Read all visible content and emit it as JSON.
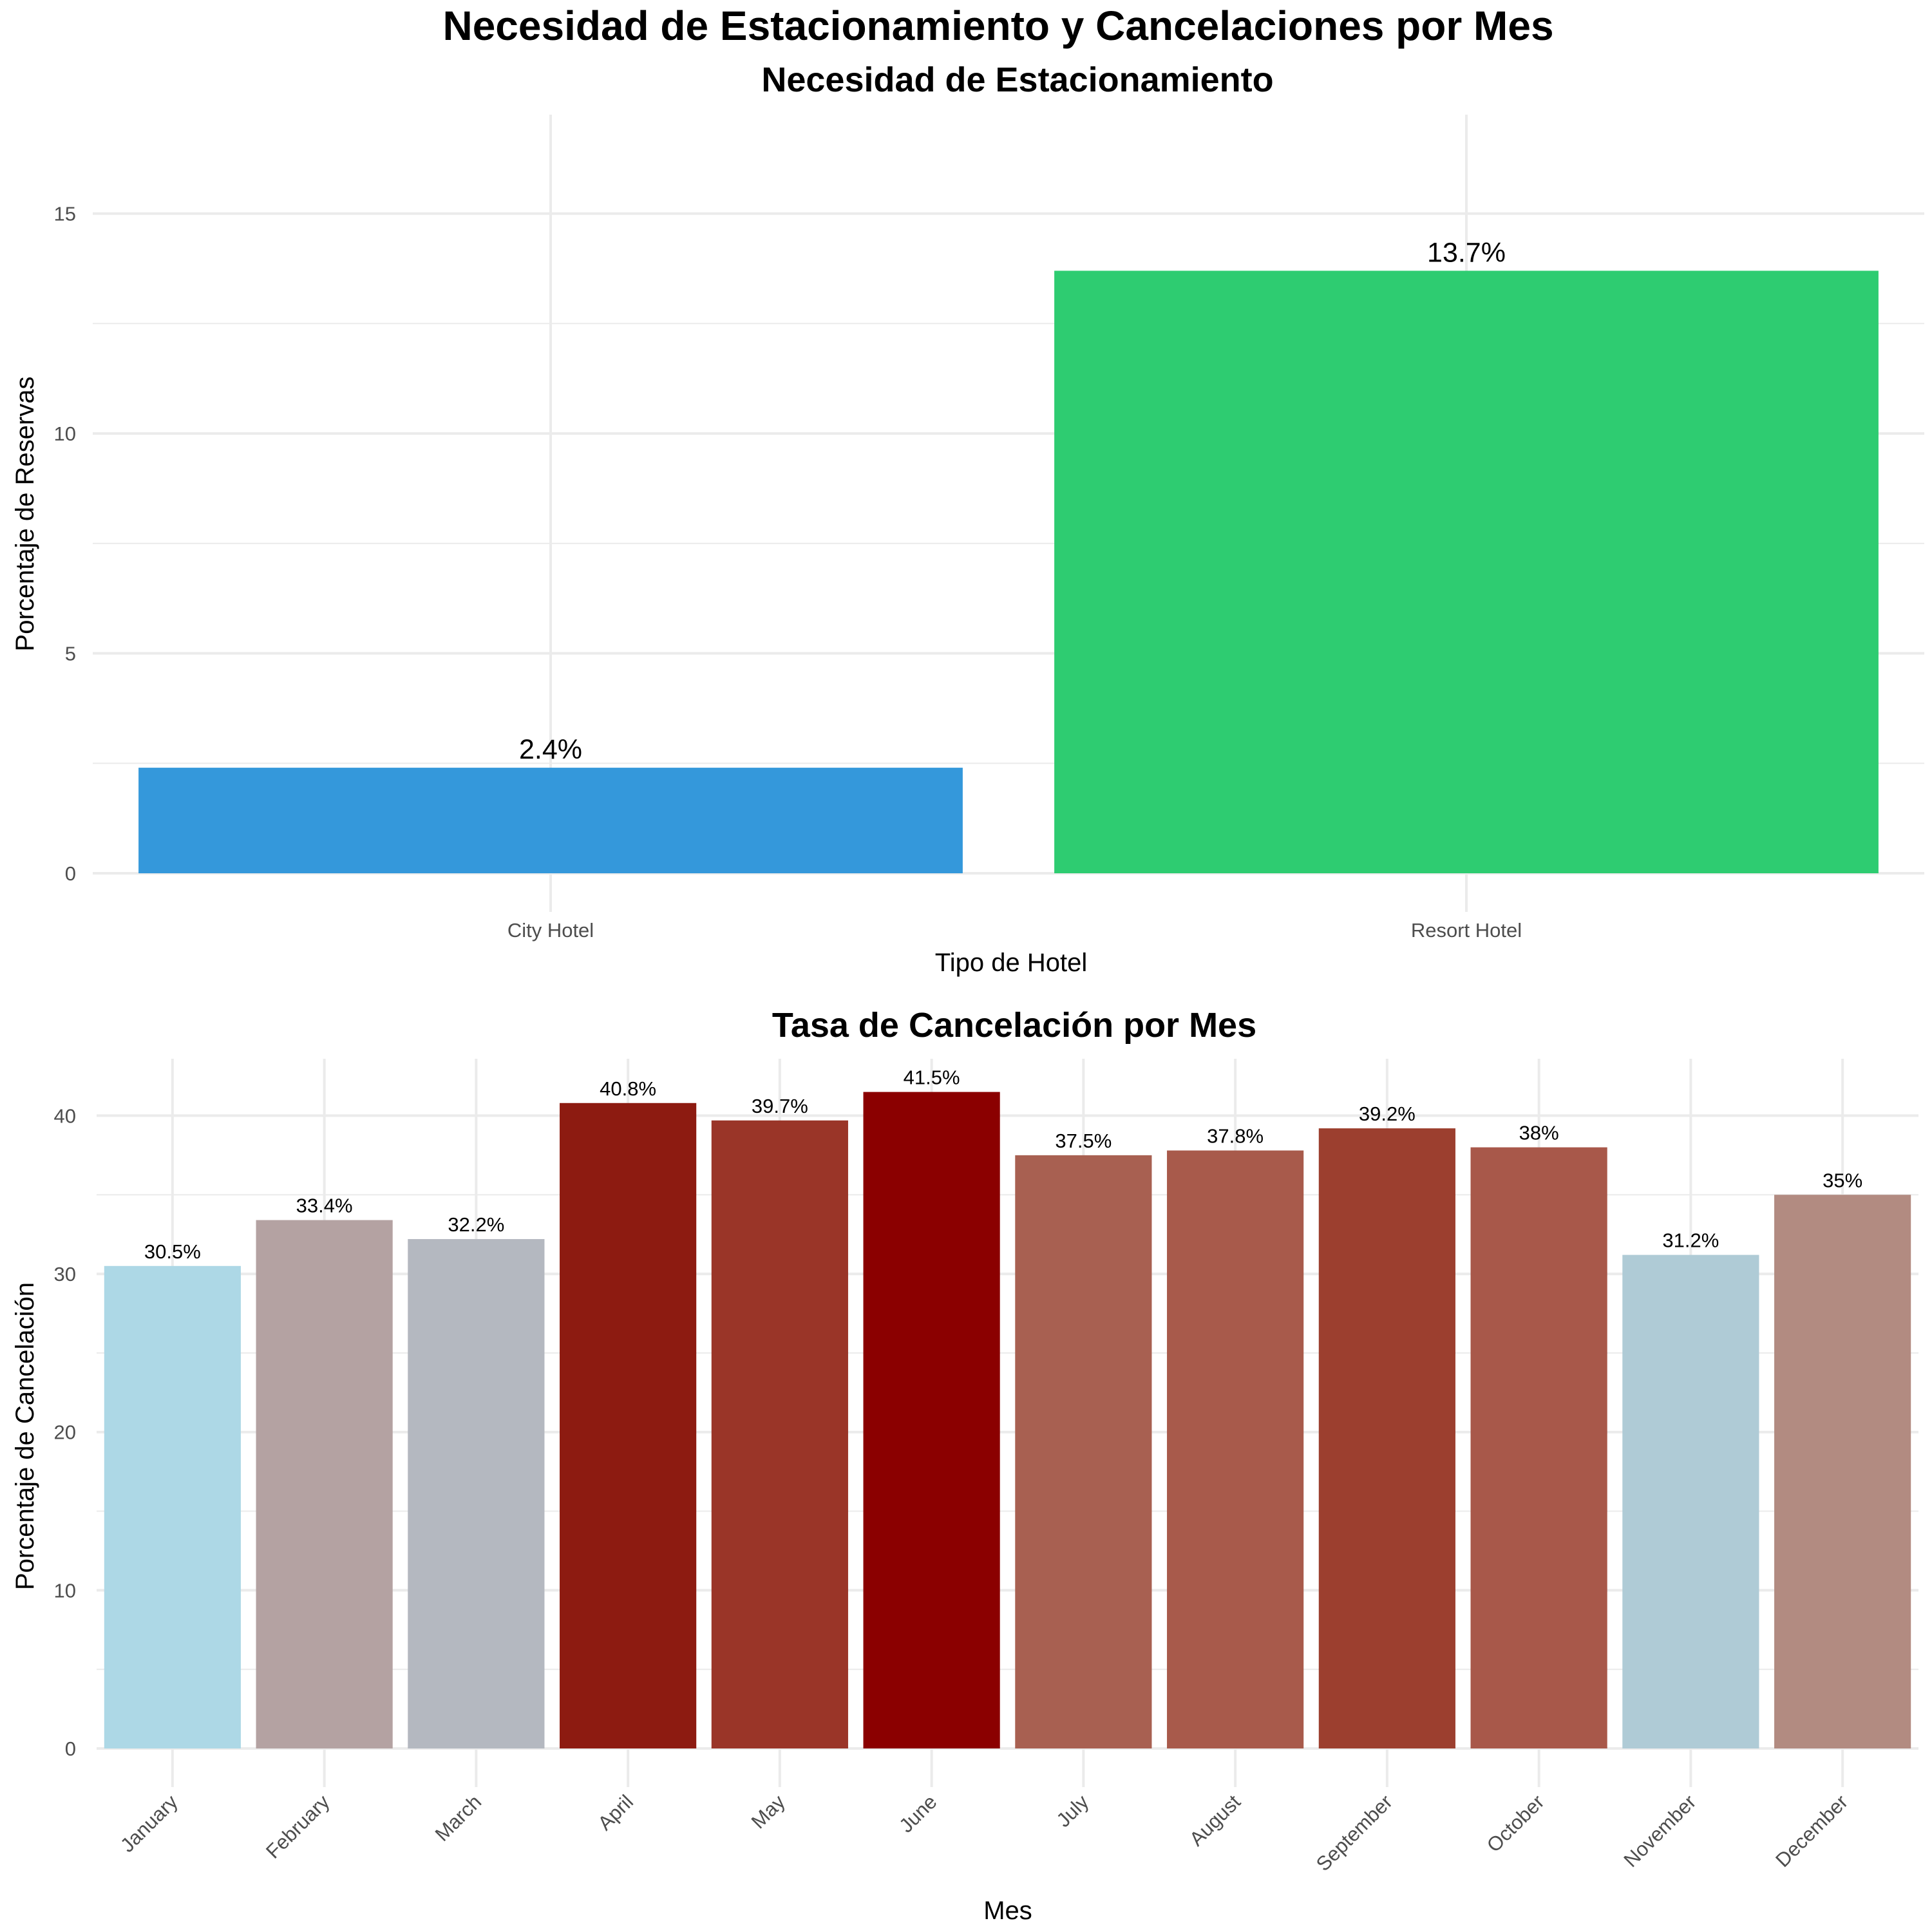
{
  "title": "Necesidad de Estacionamiento y Cancelaciones por Mes",
  "chart_data": [
    {
      "type": "bar",
      "title": "Necesidad de Estacionamiento",
      "xlabel": "Tipo de Hotel",
      "ylabel": "Porcentaje de Reservas",
      "categories": [
        "City Hotel",
        "Resort Hotel"
      ],
      "values": [
        2.4,
        13.7
      ],
      "labels": [
        "2.4%",
        "13.7%"
      ],
      "colors": [
        "#3498db",
        "#2ecc71"
      ],
      "ylim": [
        0,
        17.25
      ],
      "yticks": [
        0,
        5,
        10,
        15
      ],
      "grid": true,
      "legend": "none"
    },
    {
      "type": "bar",
      "title": "Tasa de Cancelación por Mes",
      "xlabel": "Mes",
      "ylabel": "Porcentaje de Cancelación",
      "categories": [
        "January",
        "February",
        "March",
        "April",
        "May",
        "June",
        "July",
        "August",
        "September",
        "October",
        "November",
        "December"
      ],
      "values": [
        30.5,
        33.4,
        32.2,
        40.8,
        39.7,
        41.5,
        37.5,
        37.8,
        39.2,
        38,
        31.2,
        35
      ],
      "labels": [
        "30.5%",
        "33.4%",
        "32.2%",
        "40.8%",
        "39.7%",
        "41.5%",
        "37.5%",
        "37.8%",
        "39.2%",
        "38%",
        "31.2%",
        "35%"
      ],
      "colors": [
        "#add8e6",
        "#b4a2a2",
        "#b4b8c0",
        "#8d1b11",
        "#9a3528",
        "#8b0000",
        "#a86051",
        "#a85a4b",
        "#9c3f2f",
        "#a8584a",
        "#afcbd6",
        "#b28b81"
      ],
      "ylim": [
        0,
        43.6
      ],
      "yticks": [
        0,
        10,
        20,
        30,
        40
      ],
      "grid": true,
      "legend": "none"
    }
  ]
}
